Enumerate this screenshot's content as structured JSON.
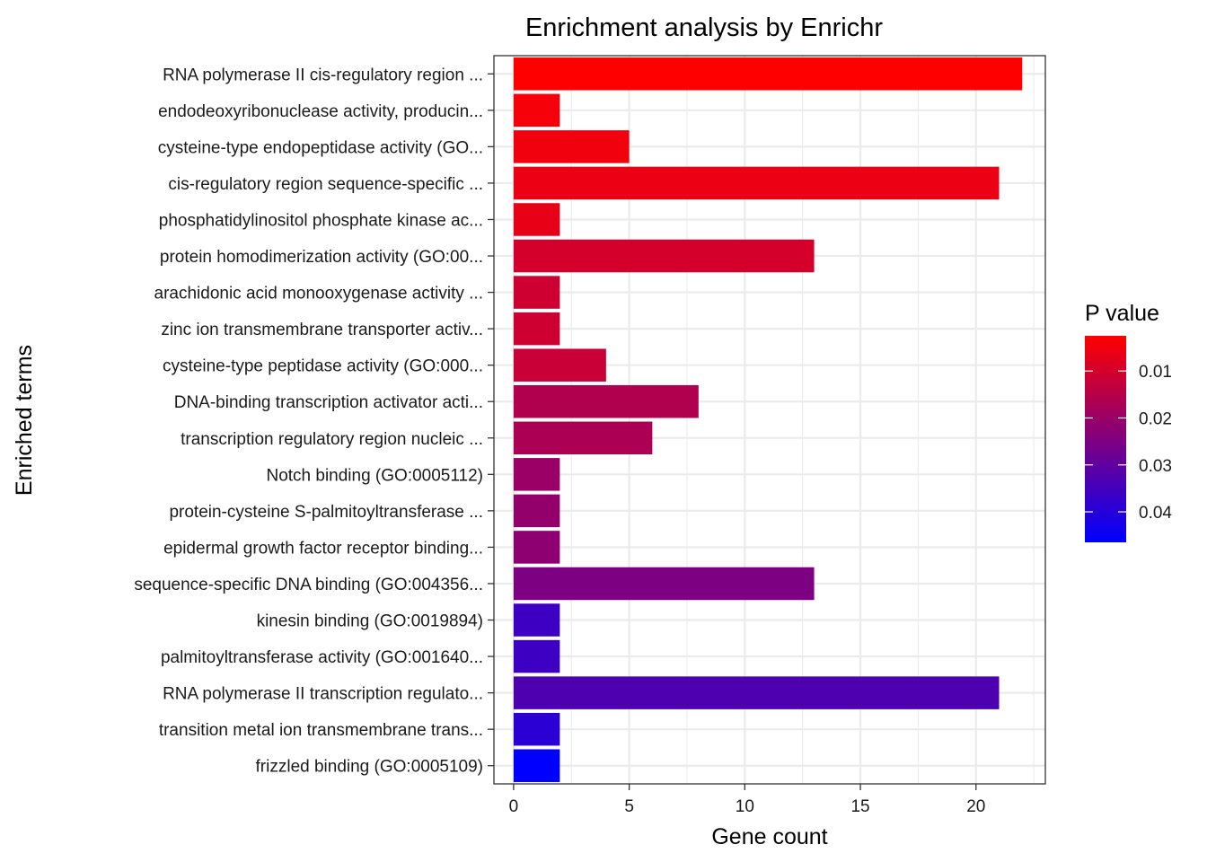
{
  "chart_data": {
    "type": "bar",
    "orientation": "horizontal",
    "title": "Enrichment analysis by Enrichr",
    "xlabel": "Gene count",
    "ylabel": "Enriched terms",
    "xlim": [
      -0.85,
      23
    ],
    "xticks": [
      0,
      5,
      10,
      15,
      20
    ],
    "grid": true,
    "legend": {
      "title": "P value",
      "position": "right",
      "min": 0.0025,
      "max": 0.0465,
      "ticks": [
        0.01,
        0.02,
        0.03,
        0.04
      ],
      "low_color": "#ff0000",
      "high_color": "#0000ff"
    },
    "bars": [
      {
        "term": "RNA polymerase II cis-regulatory region ...",
        "count": 22,
        "pvalue": 0.0025
      },
      {
        "term": "endodeoxyribonuclease activity, producin...",
        "count": 2,
        "pvalue": 0.004
      },
      {
        "term": "cysteine-type endopeptidase activity (GO...",
        "count": 5,
        "pvalue": 0.005
      },
      {
        "term": "cis-regulatory region sequence-specific ...",
        "count": 21,
        "pvalue": 0.006
      },
      {
        "term": "phosphatidylinositol phosphate kinase ac...",
        "count": 2,
        "pvalue": 0.0065
      },
      {
        "term": "protein homodimerization activity (GO:00...",
        "count": 13,
        "pvalue": 0.01
      },
      {
        "term": "arachidonic acid monooxygenase activity ...",
        "count": 2,
        "pvalue": 0.011
      },
      {
        "term": "zinc ion transmembrane transporter activ...",
        "count": 2,
        "pvalue": 0.011
      },
      {
        "term": "cysteine-type peptidase activity (GO:000...",
        "count": 4,
        "pvalue": 0.012
      },
      {
        "term": "DNA-binding transcription activator acti...",
        "count": 8,
        "pvalue": 0.016
      },
      {
        "term": "transcription regulatory region nucleic ...",
        "count": 6,
        "pvalue": 0.017
      },
      {
        "term": "Notch binding (GO:0005112)",
        "count": 2,
        "pvalue": 0.02
      },
      {
        "term": "protein-cysteine S-palmitoyltransferase ...",
        "count": 2,
        "pvalue": 0.021
      },
      {
        "term": "epidermal growth factor receptor binding...",
        "count": 2,
        "pvalue": 0.022
      },
      {
        "term": "sequence-specific DNA binding (GO:004356...",
        "count": 13,
        "pvalue": 0.025
      },
      {
        "term": "kinesin binding (GO:0019894)",
        "count": 2,
        "pvalue": 0.036
      },
      {
        "term": "palmitoyltransferase activity (GO:001640...",
        "count": 2,
        "pvalue": 0.036
      },
      {
        "term": "RNA polymerase II transcription regulato...",
        "count": 21,
        "pvalue": 0.033
      },
      {
        "term": "transition metal ion transmembrane trans...",
        "count": 2,
        "pvalue": 0.039
      },
      {
        "term": "frizzled binding (GO:0005109)",
        "count": 2,
        "pvalue": 0.0465
      }
    ]
  }
}
